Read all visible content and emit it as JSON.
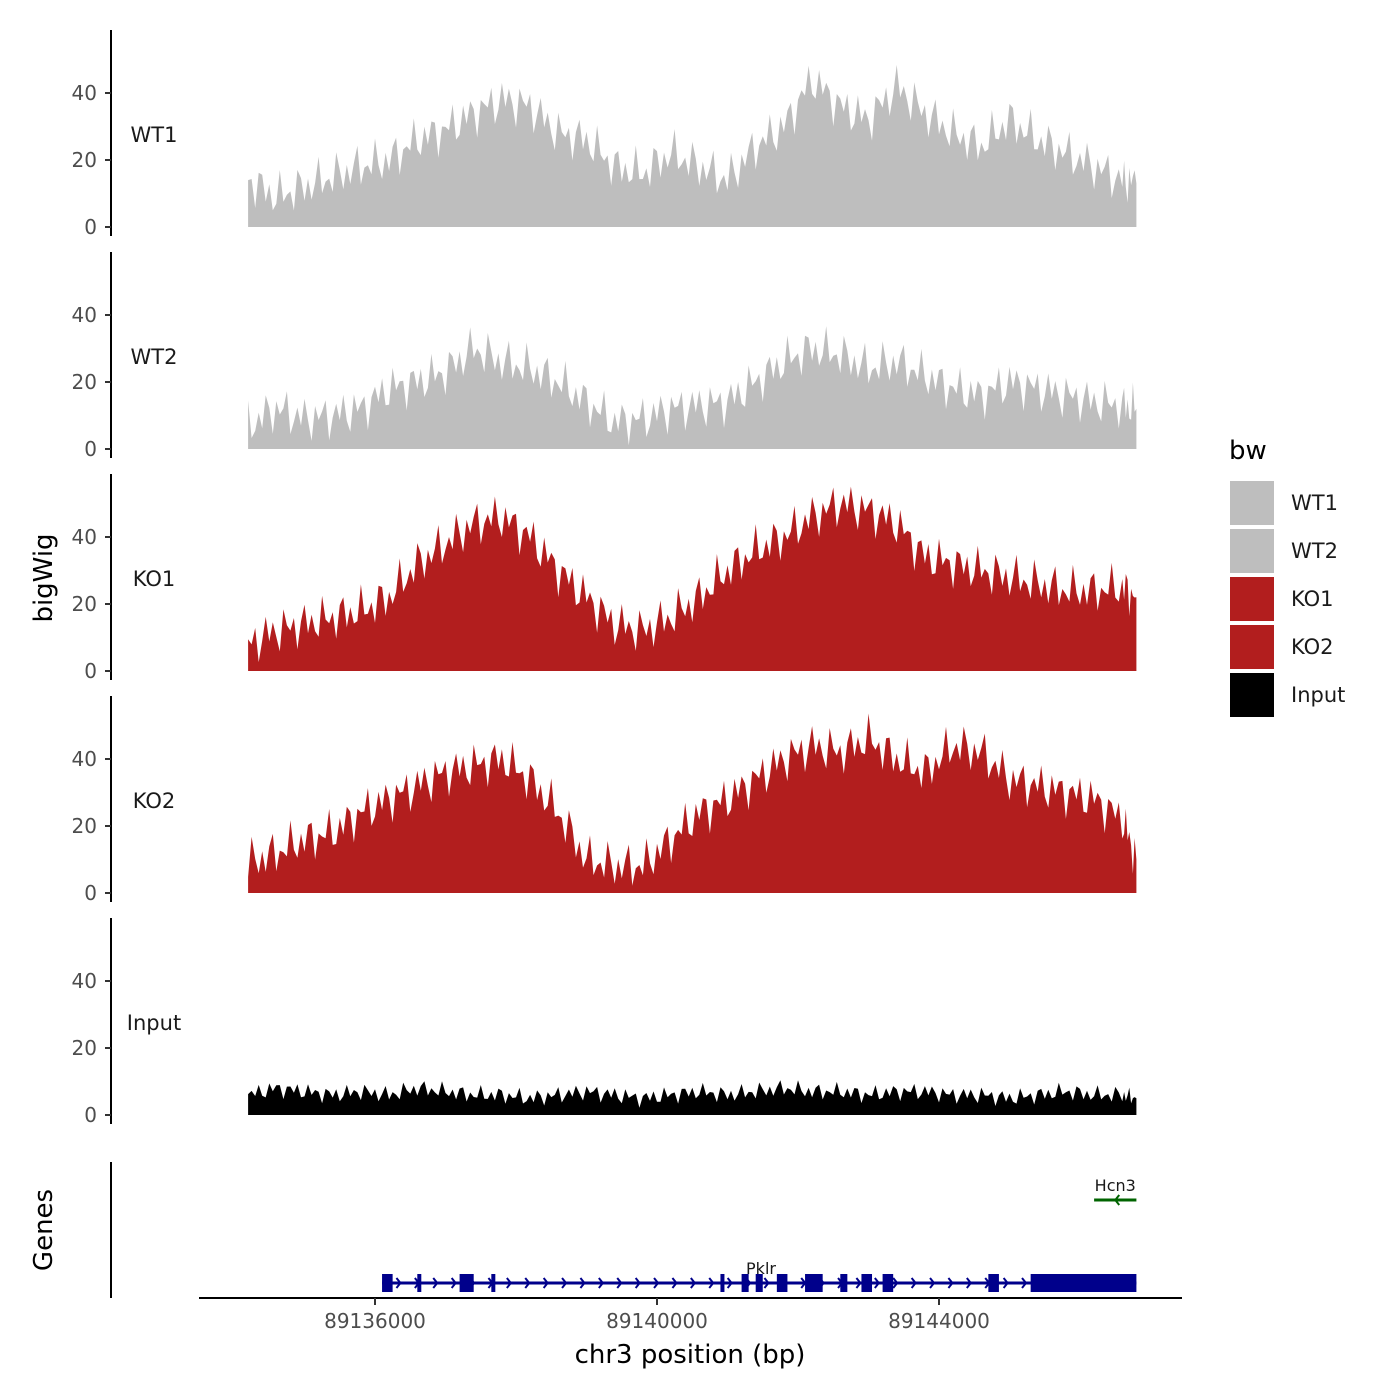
{
  "chart_data": {
    "type": "area",
    "xlabel": "chr3 position (bp)",
    "ylabel": "bigWig",
    "genes_label": "Genes",
    "xlim": [
      89133800,
      89147200
    ],
    "ylim": [
      0,
      58
    ],
    "x_ticks": [
      89136000,
      89140000,
      89144000
    ],
    "x_tick_labels": [
      "89136000",
      "89140000",
      "89144000"
    ],
    "y_ticks": [
      0,
      20,
      40
    ],
    "y_tick_labels": [
      "0",
      "20",
      "40"
    ],
    "legend_title": "bw",
    "legend": [
      {
        "label": "WT1",
        "color": "#bebebe"
      },
      {
        "label": "WT2",
        "color": "#bebebe"
      },
      {
        "label": "KO1",
        "color": "#b21e1e"
      },
      {
        "label": "KO2",
        "color": "#b21e1e"
      },
      {
        "label": "Input",
        "color": "#000000"
      }
    ],
    "x": [
      89134200,
      89134600,
      89135000,
      89135400,
      89135800,
      89136200,
      89136600,
      89137000,
      89137400,
      89137800,
      89138200,
      89138600,
      89139000,
      89139400,
      89139800,
      89140200,
      89140600,
      89141000,
      89141400,
      89141800,
      89142200,
      89142600,
      89143000,
      89143400,
      89143800,
      89144200,
      89144600,
      89145000,
      89145400,
      89145800,
      89146200,
      89146600,
      89146800
    ],
    "series": [
      {
        "name": "WT1",
        "color": "#bebebe",
        "values": [
          14,
          9,
          12,
          15,
          18,
          20,
          26,
          29,
          34,
          38,
          36,
          28,
          26,
          18,
          16,
          22,
          18,
          14,
          24,
          30,
          44,
          36,
          32,
          42,
          34,
          28,
          24,
          32,
          26,
          22,
          18,
          14,
          13
        ]
      },
      {
        "name": "WT2",
        "color": "#bebebe",
        "values": [
          7,
          12,
          9,
          10,
          12,
          18,
          20,
          23,
          30,
          26,
          24,
          20,
          14,
          8,
          9,
          12,
          13,
          14,
          20,
          26,
          30,
          28,
          24,
          26,
          22,
          18,
          16,
          20,
          18,
          16,
          14,
          13,
          12
        ]
      },
      {
        "name": "KO1",
        "color": "#b21e1e",
        "values": [
          8,
          12,
          14,
          16,
          18,
          22,
          32,
          38,
          44,
          46,
          40,
          30,
          22,
          14,
          12,
          16,
          22,
          30,
          36,
          40,
          46,
          50,
          48,
          44,
          34,
          32,
          30,
          28,
          26,
          24,
          24,
          25,
          22
        ]
      },
      {
        "name": "KO2",
        "color": "#b21e1e",
        "values": [
          9,
          12,
          16,
          18,
          24,
          28,
          32,
          36,
          38,
          40,
          34,
          24,
          10,
          8,
          8,
          16,
          24,
          28,
          34,
          40,
          44,
          42,
          46,
          40,
          36,
          44,
          42,
          34,
          32,
          30,
          28,
          22,
          10
        ]
      },
      {
        "name": "Input",
        "color": "#000000",
        "values": [
          6,
          8,
          7,
          6,
          7,
          6,
          8,
          7,
          6,
          6,
          5,
          6,
          7,
          6,
          5,
          6,
          7,
          6,
          7,
          8,
          7,
          7,
          6,
          7,
          7,
          6,
          6,
          5,
          6,
          7,
          6,
          6,
          5
        ]
      }
    ],
    "genes": [
      {
        "name": "Pklr",
        "strand": "+",
        "color": "#00008b",
        "start": 89136100,
        "end": 89146800,
        "exons": [
          [
            89136100,
            89136250
          ],
          [
            89136600,
            89136650
          ],
          [
            89137200,
            89137400
          ],
          [
            89137650,
            89137700
          ],
          [
            89140900,
            89140950
          ],
          [
            89141200,
            89141300
          ],
          [
            89141400,
            89141500
          ],
          [
            89141700,
            89141850
          ],
          [
            89142100,
            89142350
          ],
          [
            89142600,
            89142700
          ],
          [
            89142900,
            89143050
          ],
          [
            89143200,
            89143350
          ],
          [
            89144700,
            89144850
          ],
          [
            89145300,
            89146800
          ]
        ]
      },
      {
        "name": "Hcn3",
        "strand": "-",
        "color": "#006400",
        "start": 89146200,
        "end": 89146800,
        "exons": []
      }
    ]
  }
}
